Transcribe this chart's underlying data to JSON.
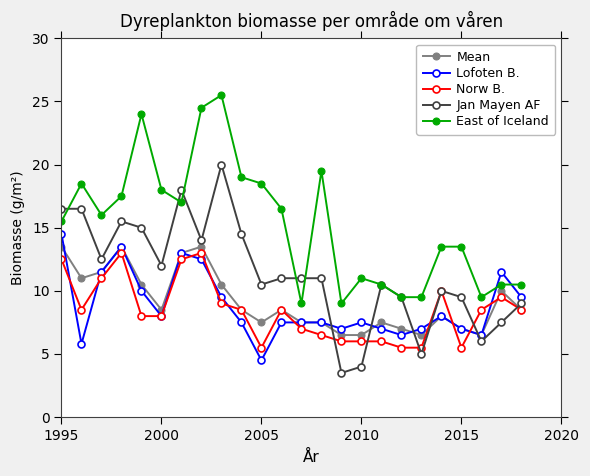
{
  "title": "Dyreplankton biomasse per område om våren",
  "xlabel": "År",
  "ylabel": "Biomasse (g/m²)",
  "ylim": [
    0,
    30
  ],
  "xlim": [
    1995,
    2020
  ],
  "yticks": [
    0,
    5,
    10,
    15,
    20,
    25,
    30
  ],
  "xticks": [
    1995,
    2000,
    2005,
    2010,
    2015,
    2020
  ],
  "mean": {
    "label": "Mean",
    "color": "#808080",
    "years": [
      1995,
      1996,
      1997,
      1998,
      1999,
      2000,
      2001,
      2002,
      2003,
      2004,
      2005,
      2006,
      2007,
      2008,
      2009,
      2010,
      2011,
      2012,
      2013,
      2014,
      2015,
      2016,
      2017,
      2018
    ],
    "values": [
      13.5,
      11.0,
      11.5,
      13.5,
      10.5,
      8.5,
      13.0,
      13.5,
      10.5,
      8.5,
      7.5,
      8.5,
      7.5,
      7.5,
      6.5,
      6.5,
      7.5,
      7.0,
      6.5,
      8.0,
      7.0,
      6.5,
      10.0,
      8.5
    ]
  },
  "lofoten": {
    "label": "Lofoten B.",
    "color": "#0000ff",
    "years": [
      1995,
      1996,
      1997,
      1998,
      1999,
      2000,
      2001,
      2002,
      2003,
      2004,
      2005,
      2006,
      2007,
      2008,
      2009,
      2010,
      2011,
      2012,
      2013,
      2014,
      2015,
      2016,
      2017,
      2018
    ],
    "values": [
      14.5,
      5.8,
      11.5,
      13.5,
      10.0,
      8.0,
      13.0,
      12.5,
      9.5,
      7.5,
      4.5,
      7.5,
      7.5,
      7.5,
      7.0,
      7.5,
      7.0,
      6.5,
      7.0,
      8.0,
      7.0,
      6.5,
      11.5,
      9.5
    ]
  },
  "norw": {
    "label": "Norw B.",
    "color": "#ff0000",
    "years": [
      1995,
      1996,
      1997,
      1998,
      1999,
      2000,
      2001,
      2002,
      2003,
      2004,
      2005,
      2006,
      2007,
      2008,
      2009,
      2010,
      2011,
      2012,
      2013,
      2014,
      2015,
      2016,
      2017,
      2018
    ],
    "values": [
      12.5,
      8.5,
      11.0,
      13.0,
      8.0,
      8.0,
      12.5,
      13.0,
      9.0,
      8.5,
      5.5,
      8.5,
      7.0,
      6.5,
      6.0,
      6.0,
      6.0,
      5.5,
      5.5,
      10.0,
      5.5,
      8.5,
      9.5,
      8.5
    ]
  },
  "jan_mayen": {
    "label": "Jan Mayen AF",
    "color": "#404040",
    "years": [
      1995,
      1996,
      1997,
      1998,
      1999,
      2000,
      2001,
      2002,
      2003,
      2004,
      2005,
      2006,
      2007,
      2008,
      2009,
      2010,
      2011,
      2012,
      2013,
      2014,
      2015,
      2016,
      2017,
      2018
    ],
    "values": [
      16.5,
      16.5,
      12.5,
      15.5,
      15.0,
      12.0,
      18.0,
      14.0,
      20.0,
      14.5,
      10.5,
      11.0,
      11.0,
      11.0,
      3.5,
      4.0,
      10.5,
      9.5,
      5.0,
      10.0,
      9.5,
      6.0,
      7.5,
      9.0
    ]
  },
  "east_iceland": {
    "label": "East of Iceland",
    "color": "#00aa00",
    "years": [
      1995,
      1996,
      1997,
      1998,
      1999,
      2000,
      2001,
      2002,
      2003,
      2004,
      2005,
      2006,
      2007,
      2008,
      2009,
      2010,
      2011,
      2012,
      2013,
      2014,
      2015,
      2016,
      2017,
      2018
    ],
    "values": [
      15.5,
      18.5,
      16.0,
      17.5,
      24.0,
      18.0,
      17.0,
      24.5,
      25.5,
      19.0,
      18.5,
      16.5,
      9.0,
      19.5,
      9.0,
      11.0,
      10.5,
      9.5,
      9.5,
      13.5,
      13.5,
      9.5,
      10.5,
      10.5
    ]
  },
  "marker_size": 5,
  "linewidth": 1.4,
  "legend_loc": "upper right",
  "bg_color": "#ffffff",
  "fig_bg_color": "#f0f0f0"
}
